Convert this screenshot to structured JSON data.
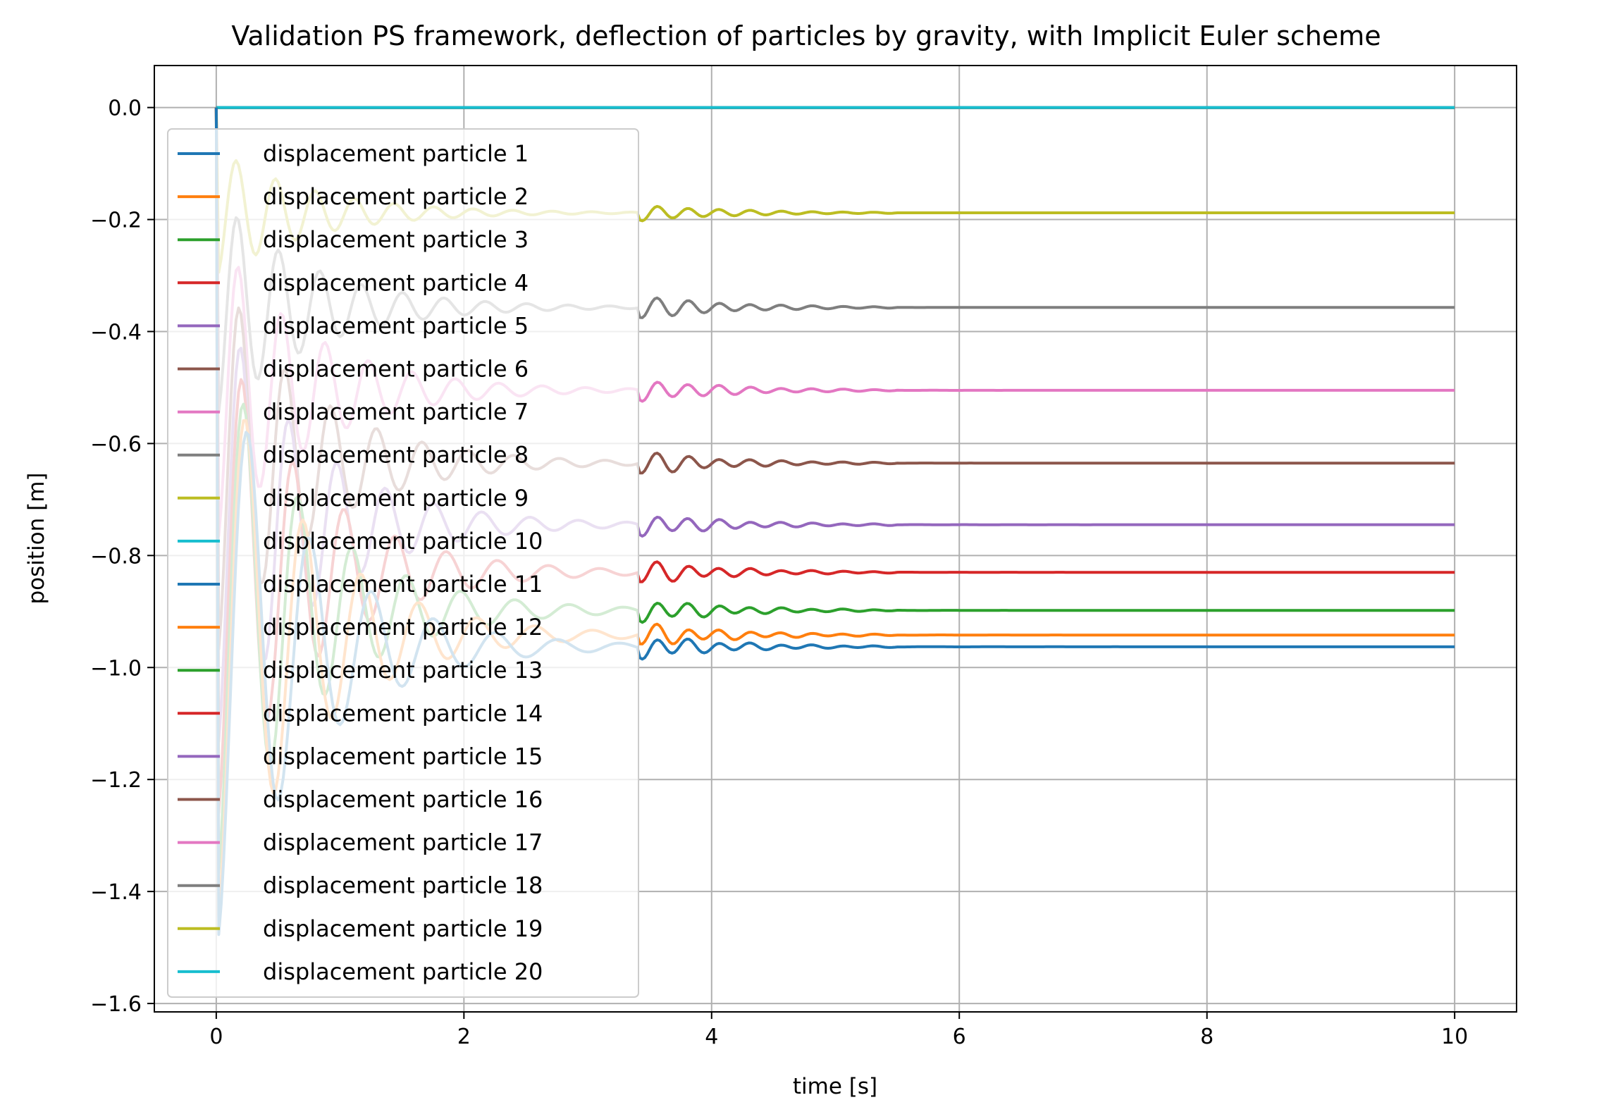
{
  "chart_data": {
    "type": "line",
    "title": "Validation PS framework, deflection of particles by gravity, with Implicit Euler scheme",
    "xlabel": "time [s]",
    "ylabel": "position [m]",
    "xlim": [
      -0.5,
      10.5
    ],
    "ylim": [
      -1.615,
      0.075
    ],
    "xticks": [
      0,
      2,
      4,
      6,
      8,
      10
    ],
    "xtick_labels": [
      "0",
      "2",
      "4",
      "6",
      "8",
      "10"
    ],
    "yticks": [
      0.0,
      -0.2,
      -0.4,
      -0.6,
      -0.8,
      -1.0,
      -1.2,
      -1.4,
      -1.6
    ],
    "ytick_labels": [
      "0.0",
      "−0.2",
      "−0.4",
      "−0.6",
      "−0.8",
      "−1.0",
      "−1.2",
      "−1.4",
      "−1.6"
    ],
    "grid": true,
    "legend_position": "upper-left",
    "series": [
      {
        "name": "displacement particle 1",
        "color": "#1f77b4",
        "final": -0.963,
        "min": -1.53,
        "amp": 0.02
      },
      {
        "name": "displacement particle 2",
        "color": "#ff7f0e",
        "final": -0.942,
        "min": -1.5,
        "amp": 0.02
      },
      {
        "name": "displacement particle 3",
        "color": "#2ca02c",
        "final": -0.898,
        "min": -1.42,
        "amp": 0.02
      },
      {
        "name": "displacement particle 4",
        "color": "#d62728",
        "final": -0.83,
        "min": -1.31,
        "amp": 0.02
      },
      {
        "name": "displacement particle 5",
        "color": "#9467bd",
        "final": -0.745,
        "min": -1.18,
        "amp": 0.02
      },
      {
        "name": "displacement particle 6",
        "color": "#8c564b",
        "final": -0.635,
        "min": -1.01,
        "amp": 0.02
      },
      {
        "name": "displacement particle 7",
        "color": "#e377c2",
        "final": -0.505,
        "min": -0.8,
        "amp": 0.02
      },
      {
        "name": "displacement particle 8",
        "color": "#7f7f7f",
        "final": -0.357,
        "min": -0.57,
        "amp": 0.02
      },
      {
        "name": "displacement particle 9",
        "color": "#bcbd22",
        "final": -0.188,
        "min": -0.31,
        "amp": 0.015
      },
      {
        "name": "displacement particle 10",
        "color": "#17becf",
        "final": 0.0,
        "min": 0.0,
        "amp": 0.0
      },
      {
        "name": "displacement particle 11",
        "color": "#1f77b4",
        "final": 0.0,
        "min": 0.0,
        "amp": 0.0
      },
      {
        "name": "displacement particle 12",
        "color": "#ff7f0e",
        "final": 0.0,
        "min": 0.0,
        "amp": 0.0
      },
      {
        "name": "displacement particle 13",
        "color": "#2ca02c",
        "final": 0.0,
        "min": 0.0,
        "amp": 0.0
      },
      {
        "name": "displacement particle 14",
        "color": "#d62728",
        "final": 0.0,
        "min": 0.0,
        "amp": 0.0
      },
      {
        "name": "displacement particle 15",
        "color": "#9467bd",
        "final": 0.0,
        "min": 0.0,
        "amp": 0.0
      },
      {
        "name": "displacement particle 16",
        "color": "#8c564b",
        "final": 0.0,
        "min": 0.0,
        "amp": 0.0
      },
      {
        "name": "displacement particle 17",
        "color": "#e377c2",
        "final": 0.0,
        "min": 0.0,
        "amp": 0.0
      },
      {
        "name": "displacement particle 18",
        "color": "#7f7f7f",
        "final": 0.0,
        "min": 0.0,
        "amp": 0.0
      },
      {
        "name": "displacement particle 19",
        "color": "#bcbd22",
        "final": 0.0,
        "min": 0.0,
        "amp": 0.0
      },
      {
        "name": "displacement particle 20",
        "color": "#17becf",
        "final": 0.0,
        "min": 0.0,
        "amp": 0.0
      }
    ]
  }
}
